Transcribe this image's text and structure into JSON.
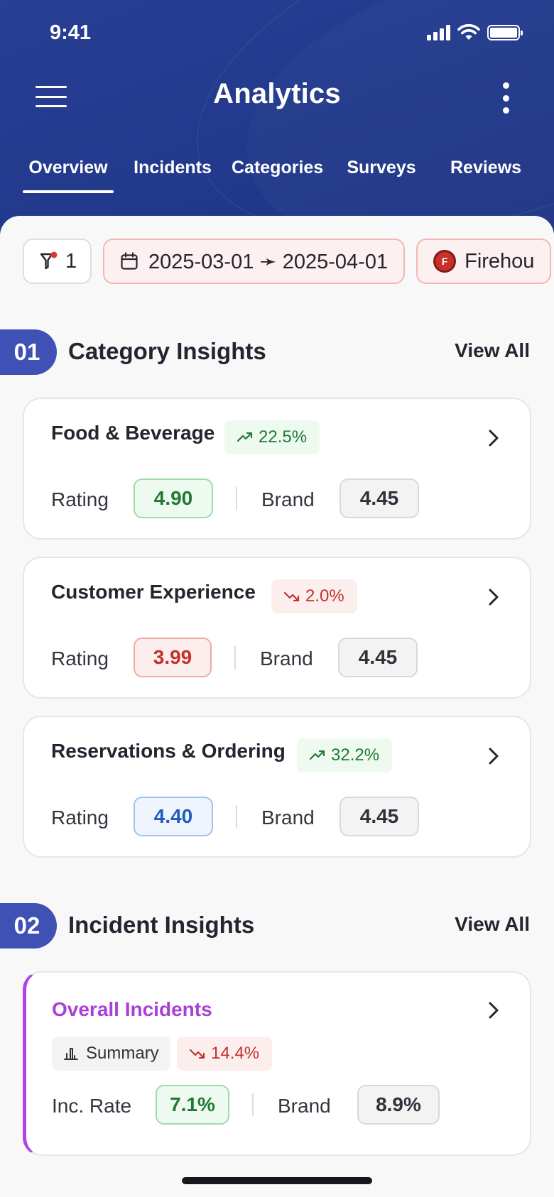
{
  "status_bar": {
    "time": "9:41"
  },
  "nav": {
    "title": "Analytics"
  },
  "tabs": [
    {
      "label": "Overview",
      "active": true
    },
    {
      "label": "Incidents",
      "active": false
    },
    {
      "label": "Categories",
      "active": false
    },
    {
      "label": "Surveys",
      "active": false
    },
    {
      "label": "Reviews",
      "active": false
    }
  ],
  "filters": {
    "count": "1",
    "date_range": "2025-03-01 ➛ 2025-04-01",
    "store": "Firehou"
  },
  "category_section": {
    "number": "01",
    "title": "Category Insights",
    "view_all": "View All",
    "cards": [
      {
        "title": "Food & Beverage",
        "trend": "22.5%",
        "trend_dir": "up",
        "rating_label": "Rating",
        "rating": "4.90",
        "rating_color": "green",
        "brand_label": "Brand",
        "brand": "4.45"
      },
      {
        "title": "Customer Experience",
        "trend": "2.0%",
        "trend_dir": "down",
        "rating_label": "Rating",
        "rating": "3.99",
        "rating_color": "red",
        "brand_label": "Brand",
        "brand": "4.45"
      },
      {
        "title": "Reservations & Ordering",
        "trend": "32.2%",
        "trend_dir": "up",
        "rating_label": "Rating",
        "rating": "4.40",
        "rating_color": "blue",
        "brand_label": "Brand",
        "brand": "4.45"
      }
    ]
  },
  "incident_section": {
    "number": "02",
    "title": "Incident Insights",
    "view_all": "View All",
    "card": {
      "title": "Overall Incidents",
      "tag": "Summary",
      "trend": "14.4%",
      "trend_dir": "down",
      "rate_label": "Inc. Rate",
      "rate": "7.1%",
      "brand_label": "Brand",
      "brand": "8.9%"
    }
  },
  "colors": {
    "header": "#22398c",
    "accent": "#3f51b5",
    "incident_accent": "#b043e8",
    "positive": "#1f7a34",
    "negative": "#c4312b"
  }
}
